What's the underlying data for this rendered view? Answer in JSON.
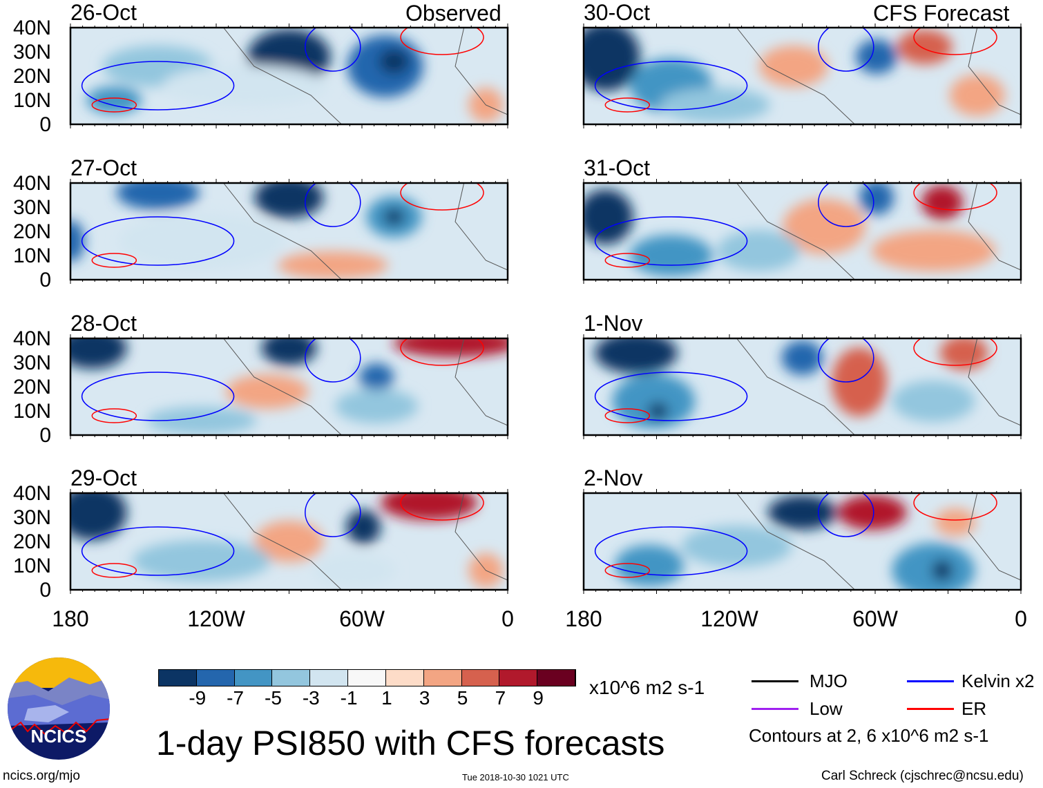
{
  "panels": {
    "left_header": "Observed",
    "right_header": "CFS Forecast",
    "left": [
      "26-Oct",
      "27-Oct",
      "28-Oct",
      "29-Oct"
    ],
    "right": [
      "30-Oct",
      "31-Oct",
      "1-Nov",
      "2-Nov"
    ]
  },
  "axes": {
    "y_ticks": [
      "40N",
      "30N",
      "20N",
      "10N",
      "0"
    ],
    "x_ticks": [
      "180",
      "120W",
      "60W",
      "0"
    ]
  },
  "colorbar": {
    "colors": [
      "#0b3464",
      "#2466ad",
      "#4395c4",
      "#93c6de",
      "#d2e5f0",
      "#f8f8f8",
      "#fddcc8",
      "#f3a583",
      "#d6614e",
      "#b1192c",
      "#6a0020"
    ],
    "labels": [
      "-9",
      "-7",
      "-5",
      "-3",
      "-1",
      "1",
      "3",
      "5",
      "7",
      "9"
    ],
    "units": "x10^6 m2 s-1"
  },
  "legend": {
    "items": [
      {
        "label": "MJO",
        "color": "#000000"
      },
      {
        "label": "Kelvin x2",
        "color": "#0000ff"
      },
      {
        "label": "Low",
        "color": "#a020f0"
      },
      {
        "label": "ER",
        "color": "#ff0000"
      }
    ],
    "note": "Contours at 2, 6 x10^6 m2 s-1"
  },
  "title": "1-day PSI850 with CFS forecasts",
  "logo_text": "NCICS",
  "footer": {
    "url": "ncics.org/mjo",
    "timestamp": "Tue 2018-10-30 1021 UTC",
    "credit": "Carl Schreck (cjschrec@ncsu.edu)"
  }
}
